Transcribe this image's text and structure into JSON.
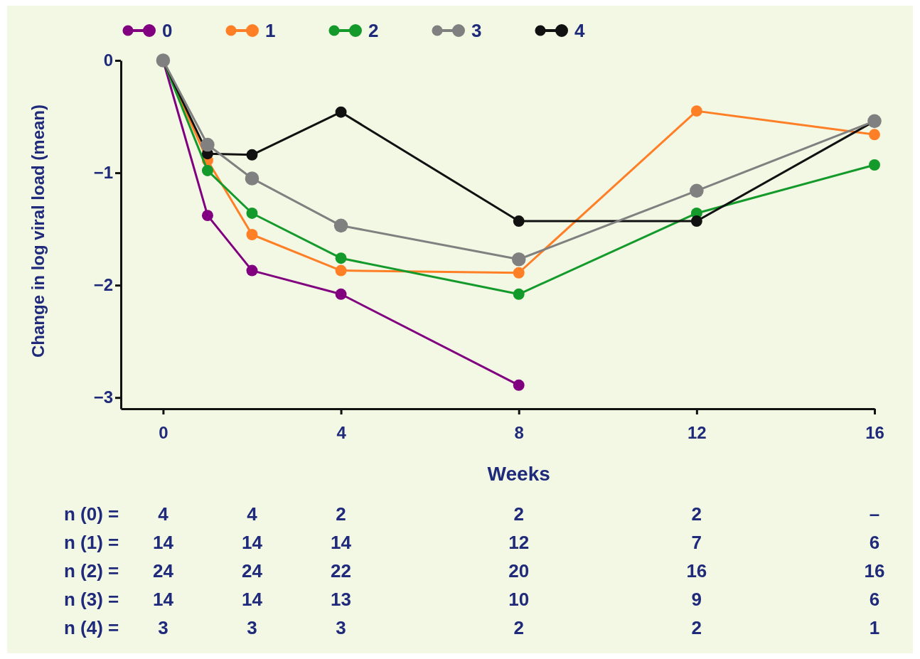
{
  "chart_data": {
    "type": "line",
    "xlabel": "Weeks",
    "ylabel": "Change in log viral load (mean)",
    "x": [
      0,
      1,
      2,
      4,
      8,
      12,
      16
    ],
    "xlim": [
      -0.95,
      16
    ],
    "xticks": [
      0,
      4,
      8,
      12,
      16
    ],
    "ylim": [
      -3.1,
      0
    ],
    "yticks": [
      {
        "value": 0,
        "label": "0"
      },
      {
        "value": -1,
        "label": "−1"
      },
      {
        "value": -2,
        "label": "−2"
      },
      {
        "value": -3,
        "label": "−3"
      }
    ],
    "marker": "circle",
    "legend": "top",
    "grid": false,
    "series": [
      {
        "name": "0",
        "color": "#800080",
        "values": [
          0,
          -1.38,
          -1.87,
          -2.08,
          -2.89,
          null,
          null
        ]
      },
      {
        "name": "1",
        "color": "#ff7f27",
        "values": [
          0,
          -0.89,
          -1.55,
          -1.87,
          -1.89,
          -0.45,
          -0.66
        ]
      },
      {
        "name": "2",
        "color": "#139a2a",
        "values": [
          0,
          -0.98,
          -1.36,
          -1.76,
          -2.08,
          -1.36,
          -0.93
        ]
      },
      {
        "name": "3",
        "color": "#808080",
        "values": [
          0,
          -0.75,
          -1.05,
          -1.47,
          -1.77,
          -1.16,
          -0.54
        ]
      },
      {
        "name": "4",
        "color": "#111111",
        "values": [
          0,
          -0.83,
          -0.84,
          -0.46,
          -1.43,
          -1.43,
          -0.54
        ]
      }
    ],
    "annotations": [
      "n (0) =",
      "4",
      "4",
      "2",
      "2",
      "2",
      "–",
      "n (1) =",
      "14",
      "14",
      "14",
      "12",
      "7",
      "6",
      "n (2) =",
      "24",
      "24",
      "22",
      "20",
      "16",
      "16",
      "n (3) =",
      "14",
      "14",
      "13",
      "10",
      "9",
      "6",
      "n (4) =",
      "3",
      "3",
      "3",
      "2",
      "2",
      "1"
    ]
  }
}
